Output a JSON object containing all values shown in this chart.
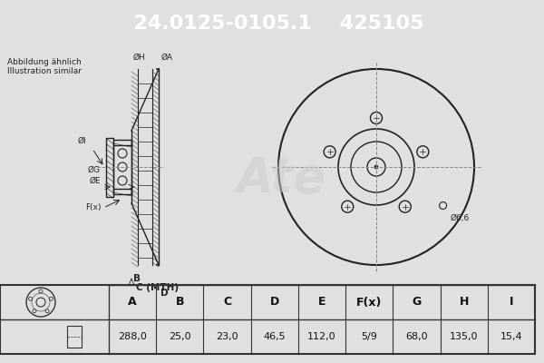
{
  "title_part": "24.0125-0105.1",
  "title_ref": "425105",
  "header_bg": "#1a5aa0",
  "header_text_color": "#ffffff",
  "body_bg": "#e8e8e8",
  "note_text": [
    "Abbildung ähnlich",
    "Illustration similar"
  ],
  "table_headers": [
    "A",
    "B",
    "C",
    "D",
    "E",
    "F(x)",
    "G",
    "H",
    "I"
  ],
  "table_values": [
    "288,0",
    "25,0",
    "23,0",
    "46,5",
    "112,0",
    "5/9",
    "68,0",
    "135,0",
    "15,4"
  ],
  "dim_label_6_6": "Ø6,6",
  "dim_label_A": "ØA",
  "dim_label_H": "ØH",
  "dim_label_G": "ØG",
  "dim_label_E": "ØE",
  "dim_label_I": "ØI",
  "dim_label_B": "B",
  "dim_label_C": "C (MTH)",
  "dim_label_D": "D",
  "dim_label_Fx": "F(x)"
}
